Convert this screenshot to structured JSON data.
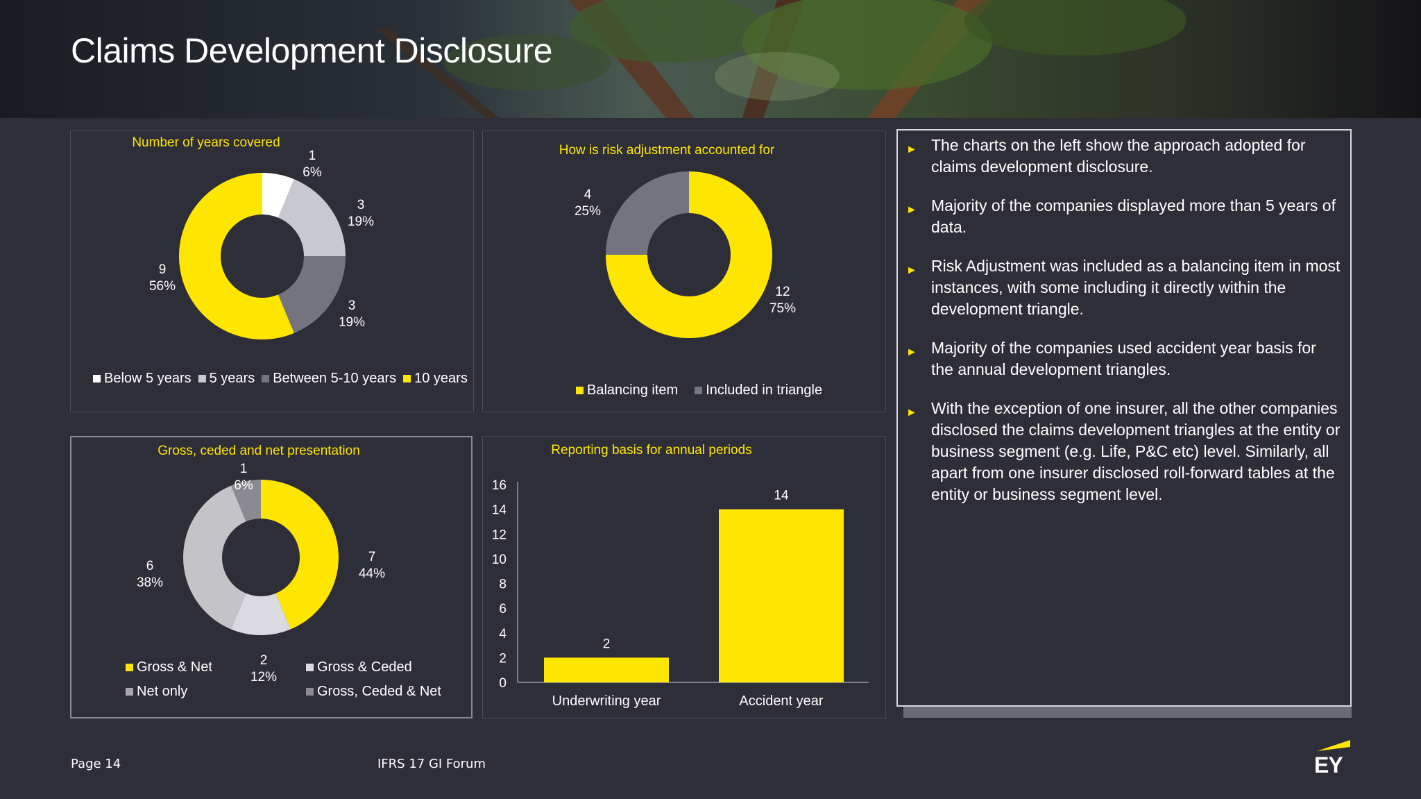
{
  "header": {
    "title": "Claims Development Disclosure"
  },
  "panels": {
    "years": {
      "title": "Number of years covered",
      "slices": [
        {
          "name": "Below 5 years",
          "value": 1,
          "pct": "6%",
          "color": "#ffffff"
        },
        {
          "name": "5 years",
          "value": 3,
          "pct": "19%",
          "color": "#c8c8d0"
        },
        {
          "name": "Between 5-10 years",
          "value": 3,
          "pct": "19%",
          "color": "#747480"
        },
        {
          "name": "10 years",
          "value": 9,
          "pct": "56%",
          "color": "#ffe600"
        }
      ]
    },
    "risk": {
      "title": "How is risk adjustment accounted for",
      "slices": [
        {
          "name": "Balancing item",
          "value": 12,
          "pct": "75%",
          "color": "#ffe600"
        },
        {
          "name": "Included in triangle",
          "value": 4,
          "pct": "25%",
          "color": "#747480"
        }
      ]
    },
    "gross": {
      "title": "Gross, ceded and net presentation",
      "slices": [
        {
          "name": "Gross & Net",
          "value": 7,
          "pct": "44%",
          "color": "#ffe600"
        },
        {
          "name": "Gross & Ceded",
          "value": 2,
          "pct": "12%",
          "color": "#dadae0"
        },
        {
          "name": "Net only",
          "value": 6,
          "pct": "38%",
          "color": "#c4c4c8"
        },
        {
          "name": "Gross, Ceded & Net",
          "value": 1,
          "pct": "6%",
          "color": "#8a8a90"
        }
      ]
    },
    "basis": {
      "title": "Reporting basis for annual periods"
    }
  },
  "chart_data": [
    {
      "type": "pie",
      "title": "Number of years covered",
      "categories": [
        "Below 5 years",
        "5 years",
        "Between 5-10 years",
        "10 years"
      ],
      "values": [
        1,
        3,
        3,
        9
      ],
      "percent_labels": [
        "6%",
        "19%",
        "19%",
        "56%"
      ],
      "legend": "bottom"
    },
    {
      "type": "pie",
      "title": "How is risk adjustment accounted for",
      "categories": [
        "Balancing item",
        "Included in triangle"
      ],
      "values": [
        12,
        4
      ],
      "percent_labels": [
        "75%",
        "25%"
      ],
      "legend": "bottom"
    },
    {
      "type": "pie",
      "title": "Gross, ceded and net presentation",
      "categories": [
        "Gross & Net",
        "Gross & Ceded",
        "Net only",
        "Gross, Ceded & Net"
      ],
      "values": [
        7,
        2,
        6,
        1
      ],
      "percent_labels": [
        "44%",
        "12%",
        "38%",
        "6%"
      ],
      "legend": "bottom"
    },
    {
      "type": "bar",
      "title": "Reporting basis for annual periods",
      "categories": [
        "Underwriting year",
        "Accident year"
      ],
      "values": [
        2,
        14
      ],
      "ylim": [
        0,
        16
      ],
      "yticks": [
        "0",
        "2",
        "4",
        "6",
        "8",
        "10",
        "12",
        "14",
        "16"
      ],
      "grid": false,
      "color": "#ffe600"
    }
  ],
  "bullets": [
    "The charts on the left show the approach adopted for claims development disclosure.",
    "Majority of the companies displayed more than 5 years of data.",
    "Risk Adjustment was included as a balancing item in most instances, with some including it directly within the development triangle.",
    "Majority of the companies used accident year basis for the annual development triangles.",
    "With the exception of one insurer, all the other companies disclosed the claims development triangles at the entity or business segment (e.g. Life, P&C etc) level. Similarly, all apart from one insurer disclosed roll-forward tables at the entity or business segment level."
  ],
  "footer": {
    "page": "Page 14",
    "event": "IFRS 17 GI Forum",
    "logo": "EY"
  }
}
